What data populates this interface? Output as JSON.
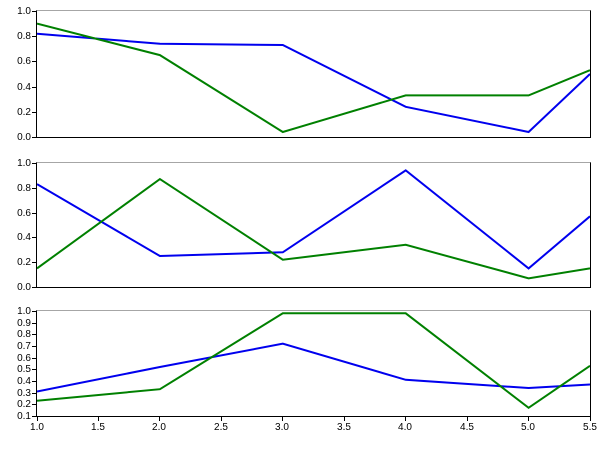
{
  "figure": {
    "background": "#ffffff",
    "spine_color": "#000000",
    "top_spine_color": "#a6a6a6",
    "tick_label_color": "#000000"
  },
  "chart_data": [
    {
      "id": "subplot-top",
      "type": "line",
      "x": [
        1,
        2,
        3,
        4,
        5,
        5.5
      ],
      "xlim": [
        1,
        5.5
      ],
      "ylim": [
        0,
        1
      ],
      "yticks": [
        "0.0",
        "0.2",
        "0.4",
        "0.6",
        "0.8",
        "1.0"
      ],
      "xticks": [],
      "grid": false,
      "legend": null,
      "title": "",
      "xlabel": "",
      "ylabel": "",
      "series": [
        {
          "name": "blue-series",
          "color": "#0000ee",
          "values": [
            0.82,
            0.74,
            0.73,
            0.24,
            0.04,
            0.5
          ]
        },
        {
          "name": "green-series",
          "color": "#008000",
          "values": [
            0.9,
            0.65,
            0.04,
            0.33,
            0.33,
            0.53
          ]
        }
      ]
    },
    {
      "id": "subplot-middle",
      "type": "line",
      "x": [
        1,
        2,
        3,
        4,
        5,
        5.5
      ],
      "xlim": [
        1,
        5.5
      ],
      "ylim": [
        0,
        1
      ],
      "yticks": [
        "0.0",
        "0.2",
        "0.4",
        "0.6",
        "0.8",
        "1.0"
      ],
      "xticks": [],
      "grid": false,
      "legend": null,
      "title": "",
      "xlabel": "",
      "ylabel": "",
      "series": [
        {
          "name": "blue-series",
          "color": "#0000ee",
          "values": [
            0.83,
            0.25,
            0.28,
            0.94,
            0.15,
            0.57
          ]
        },
        {
          "name": "green-series",
          "color": "#008000",
          "values": [
            0.15,
            0.87,
            0.22,
            0.34,
            0.07,
            0.15
          ]
        }
      ]
    },
    {
      "id": "subplot-bottom",
      "type": "line",
      "x": [
        1,
        2,
        3,
        4,
        5,
        5.5
      ],
      "xlim": [
        1,
        5.5
      ],
      "ylim": [
        0.1,
        1.0
      ],
      "yticks": [
        "0.1",
        "0.2",
        "0.3",
        "0.4",
        "0.5",
        "0.6",
        "0.7",
        "0.8",
        "0.9",
        "1.0"
      ],
      "xticks": [
        "1.0",
        "1.5",
        "2.0",
        "2.5",
        "3.0",
        "3.5",
        "4.0",
        "4.5",
        "5.0",
        "5.5"
      ],
      "grid": false,
      "legend": null,
      "title": "",
      "xlabel": "",
      "ylabel": "",
      "series": [
        {
          "name": "blue-series",
          "color": "#0000ee",
          "values": [
            0.31,
            0.52,
            0.72,
            0.41,
            0.34,
            0.37
          ]
        },
        {
          "name": "green-series",
          "color": "#008000",
          "values": [
            0.23,
            0.33,
            0.98,
            0.98,
            0.17,
            0.53
          ]
        }
      ]
    }
  ]
}
